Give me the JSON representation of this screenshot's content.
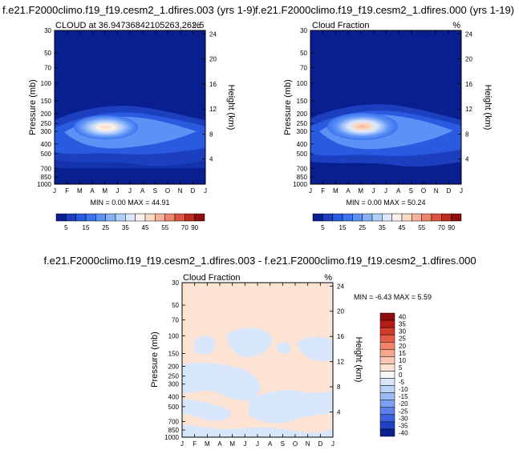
{
  "chart_data": [
    {
      "type": "heatmap",
      "title": "f.e21.F2000climo.f19_f19.cesm2_1.dfires.003 (yrs 1-9)",
      "subtitle_left": "CLOUD at 36.94736842105263,262.5",
      "subtitle_right": "%",
      "ylabel": "Pressure (mb)",
      "ylabel_right": "Height (km)",
      "x_ticks": [
        "J",
        "F",
        "M",
        "A",
        "M",
        "J",
        "J",
        "A",
        "S",
        "O",
        "N",
        "D",
        "J"
      ],
      "y_ticks": [
        "30",
        "50",
        "70",
        "100",
        "150",
        "200",
        "250",
        "300",
        "400",
        "500",
        "700",
        "850",
        "1000"
      ],
      "y_ticks_right": [
        "24",
        "20",
        "16",
        "12",
        "8",
        "4"
      ],
      "min_max": "MIN =   0.00 MAX =  44.91",
      "colorbar_labels": [
        "5",
        "15",
        "25",
        "35",
        "45",
        "55",
        "70",
        "90"
      ],
      "peak": {
        "month": "Apr-May",
        "pressure_mb": 250,
        "value": 44.91
      },
      "min": 0.0,
      "max": 44.91
    },
    {
      "type": "heatmap",
      "title": "f.e21.F2000climo.f19_f19.cesm2_1.dfires.000 (yrs 1-19)",
      "subtitle_left": "Cloud Fraction",
      "subtitle_right": "%",
      "ylabel": "Pressure (mb)",
      "ylabel_right": "Height (km)",
      "x_ticks": [
        "J",
        "F",
        "M",
        "A",
        "M",
        "J",
        "J",
        "A",
        "S",
        "O",
        "N",
        "D",
        "J"
      ],
      "y_ticks": [
        "30",
        "50",
        "70",
        "100",
        "150",
        "200",
        "250",
        "300",
        "400",
        "500",
        "700",
        "850",
        "1000"
      ],
      "y_ticks_right": [
        "24",
        "20",
        "16",
        "12",
        "8",
        "4"
      ],
      "min_max": "MIN =   0.00 MAX =  50.24",
      "colorbar_labels": [
        "5",
        "15",
        "25",
        "35",
        "45",
        "55",
        "70",
        "90"
      ],
      "peak": {
        "month": "Apr-May",
        "pressure_mb": 250,
        "value": 50.24
      },
      "min": 0.0,
      "max": 50.24
    },
    {
      "type": "heatmap",
      "title": "f.e21.F2000climo.f19_f19.cesm2_1.dfires.003 - f.e21.F2000climo.f19_f19.cesm2_1.dfires.000",
      "subtitle_left": "Cloud Fraction",
      "subtitle_right": "%",
      "ylabel": "Pressure (mb)",
      "ylabel_right": "Height (km)",
      "x_ticks": [
        "J",
        "F",
        "M",
        "A",
        "M",
        "J",
        "J",
        "A",
        "S",
        "O",
        "N",
        "D",
        "J"
      ],
      "y_ticks": [
        "30",
        "50",
        "70",
        "100",
        "150",
        "200",
        "250",
        "300",
        "400",
        "500",
        "700",
        "850",
        "1000"
      ],
      "y_ticks_right": [
        "24",
        "20",
        "16",
        "12",
        "8",
        "4"
      ],
      "min_max": "MIN =  -6.43 MAX =   5.59",
      "colorbar_labels": [
        "40",
        "35",
        "30",
        "25",
        "20",
        "15",
        "10",
        "5",
        "0",
        "-5",
        "-10",
        "-15",
        "-20",
        "-25",
        "-30",
        "-35",
        "-40"
      ],
      "min": -6.43,
      "max": 5.59
    }
  ],
  "colors": {
    "seq_colorbar": [
      "#0a1f8f",
      "#1b3fbf",
      "#2a5adf",
      "#3a74ef",
      "#5c92f6",
      "#86b1f9",
      "#b1cffb",
      "#dbe9fd",
      "#fdf2e9",
      "#fbd9c4",
      "#f7b39a",
      "#ef866c",
      "#dd5541",
      "#be2a20",
      "#8c0f0c"
    ],
    "diff_colorbar": [
      "#8c0f0c",
      "#b51c16",
      "#d23a2c",
      "#e55d46",
      "#f0836a",
      "#f7a68e",
      "#fbc6b2",
      "#fde3d4",
      "#f6f6f6",
      "#d8e6fb",
      "#bcd2f8",
      "#9cbaf4",
      "#7d9ff0",
      "#5c80e8",
      "#3d61dc",
      "#2042c4",
      "#0a238f"
    ]
  }
}
